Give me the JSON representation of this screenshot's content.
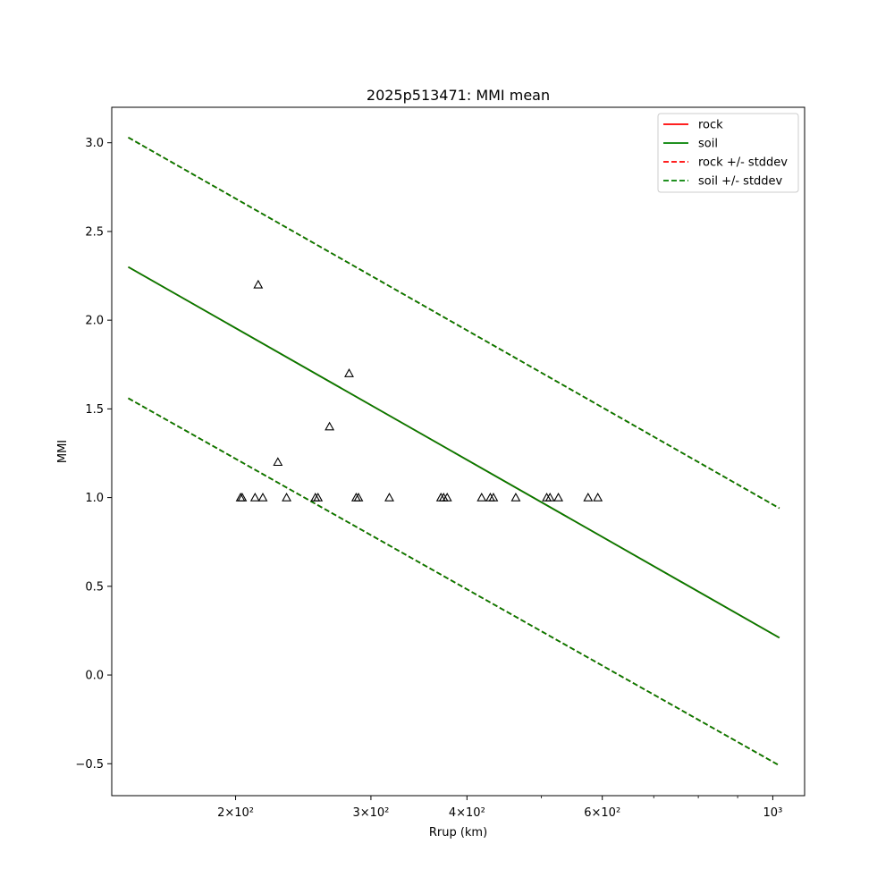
{
  "chart_data": {
    "type": "line",
    "title": "2025p513471: MMI mean",
    "xlabel": "Rrup (km)",
    "ylabel": "MMI",
    "xscale": "log",
    "xlim": [
      138,
      1100
    ],
    "ylim": [
      -0.68,
      3.2
    ],
    "x_ticks": [
      {
        "value": 200,
        "label": "2×10²"
      },
      {
        "value": 300,
        "label": "3×10²"
      },
      {
        "value": 400,
        "label": "4×10²"
      },
      {
        "value": 600,
        "label": "6×10²"
      },
      {
        "value": 1000,
        "label": "10³"
      }
    ],
    "x_minor_ticks": [
      500,
      700,
      800,
      900
    ],
    "y_ticks": [
      -0.5,
      0.0,
      0.5,
      1.0,
      1.5,
      2.0,
      2.5,
      3.0
    ],
    "y_tick_labels": [
      "−0.5",
      "0.0",
      "0.5",
      "1.0",
      "1.5",
      "2.0",
      "2.5",
      "3.0"
    ],
    "grid": false,
    "legend_position": "top-right",
    "legend": [
      {
        "label": "rock",
        "color": "#ff0000",
        "dashed": false
      },
      {
        "label": "soil",
        "color": "#008000",
        "dashed": false
      },
      {
        "label": "rock +/- stddev",
        "color": "#ff0000",
        "dashed": true
      },
      {
        "label": "soil +/- stddev",
        "color": "#008000",
        "dashed": true
      }
    ],
    "series": [
      {
        "name": "rock",
        "style": "solid",
        "color": "#ff0000",
        "x": [
          145,
          1020
        ],
        "y": [
          2.3,
          0.21
        ]
      },
      {
        "name": "soil",
        "style": "solid",
        "color": "#008000",
        "x": [
          145,
          1020
        ],
        "y": [
          2.3,
          0.21
        ]
      },
      {
        "name": "rock +std",
        "style": "dashed",
        "color": "#ff0000",
        "x": [
          145,
          1020
        ],
        "y": [
          3.03,
          0.94
        ]
      },
      {
        "name": "rock -std",
        "style": "dashed",
        "color": "#ff0000",
        "x": [
          145,
          1020
        ],
        "y": [
          1.56,
          -0.51
        ]
      },
      {
        "name": "soil +std",
        "style": "dashed",
        "color": "#008000",
        "x": [
          145,
          1020
        ],
        "y": [
          3.03,
          0.94
        ]
      },
      {
        "name": "soil -std",
        "style": "dashed",
        "color": "#008000",
        "x": [
          145,
          1020
        ],
        "y": [
          1.56,
          -0.51
        ]
      }
    ],
    "observations": {
      "marker": "triangle",
      "points": [
        {
          "x": 203,
          "y": 1.0
        },
        {
          "x": 204,
          "y": 1.0
        },
        {
          "x": 214,
          "y": 2.2
        },
        {
          "x": 212,
          "y": 1.0
        },
        {
          "x": 217,
          "y": 1.0
        },
        {
          "x": 227,
          "y": 1.2
        },
        {
          "x": 233,
          "y": 1.0
        },
        {
          "x": 254,
          "y": 1.0
        },
        {
          "x": 256,
          "y": 1.0
        },
        {
          "x": 265,
          "y": 1.4
        },
        {
          "x": 281,
          "y": 1.7
        },
        {
          "x": 287,
          "y": 1.0
        },
        {
          "x": 289,
          "y": 1.0
        },
        {
          "x": 317,
          "y": 1.0
        },
        {
          "x": 370,
          "y": 1.0
        },
        {
          "x": 373,
          "y": 1.0
        },
        {
          "x": 377,
          "y": 1.0
        },
        {
          "x": 418,
          "y": 1.0
        },
        {
          "x": 429,
          "y": 1.0
        },
        {
          "x": 433,
          "y": 1.0
        },
        {
          "x": 463,
          "y": 1.0
        },
        {
          "x": 508,
          "y": 1.0
        },
        {
          "x": 513,
          "y": 1.0
        },
        {
          "x": 526,
          "y": 1.0
        },
        {
          "x": 575,
          "y": 1.0
        },
        {
          "x": 592,
          "y": 1.0
        }
      ]
    }
  }
}
